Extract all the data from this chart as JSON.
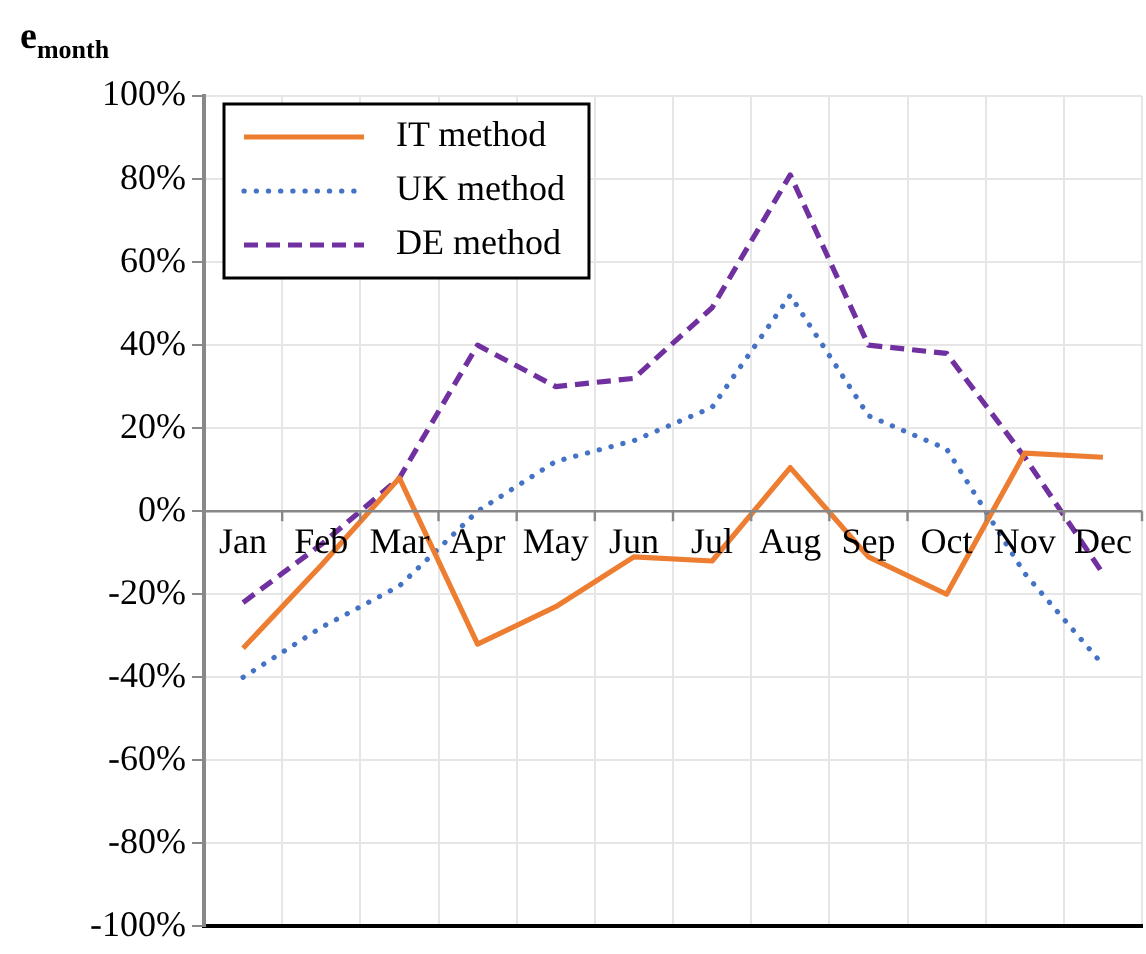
{
  "chart_data": {
    "type": "line",
    "ylabel": "e$_{month}$",
    "categories": [
      "Jan",
      "Feb",
      "Mar",
      "Apr",
      "May",
      "Jun",
      "Jul",
      "Aug",
      "Sep",
      "Oct",
      "Nov",
      "Dec"
    ],
    "series": [
      {
        "name": "IT method",
        "color": "#ed7d31",
        "line_style": "solid",
        "values": [
          -33,
          -13,
          8,
          -32,
          -23,
          -11,
          -12,
          10.5,
          -11,
          -20,
          14,
          13
        ]
      },
      {
        "name": "UK method",
        "color": "#4472c4",
        "line_style": "dotted",
        "values": [
          -40,
          -28,
          -18,
          0,
          12,
          17,
          25,
          52,
          23,
          15,
          -15,
          -37
        ]
      },
      {
        "name": "DE method",
        "color": "#7030a0",
        "line_style": "dashed",
        "values": [
          -22,
          -8,
          8,
          40,
          30,
          32,
          49,
          81,
          40,
          38,
          13,
          -15
        ]
      }
    ],
    "ylim": [
      -100,
      100
    ],
    "yticks": [
      {
        "value": -100,
        "label": "-100%"
      },
      {
        "value": -80,
        "label": "-80%"
      },
      {
        "value": -60,
        "label": "-60%"
      },
      {
        "value": -40,
        "label": "-40%"
      },
      {
        "value": -20,
        "label": "-20%"
      },
      {
        "value": 0,
        "label": "0%"
      },
      {
        "value": 20,
        "label": "20%"
      },
      {
        "value": 40,
        "label": "40%"
      },
      {
        "value": 60,
        "label": "60%"
      },
      {
        "value": 80,
        "label": "80%"
      },
      {
        "value": 100,
        "label": "100%"
      }
    ],
    "grid": true,
    "legend": "top left",
    "marker": "none"
  }
}
